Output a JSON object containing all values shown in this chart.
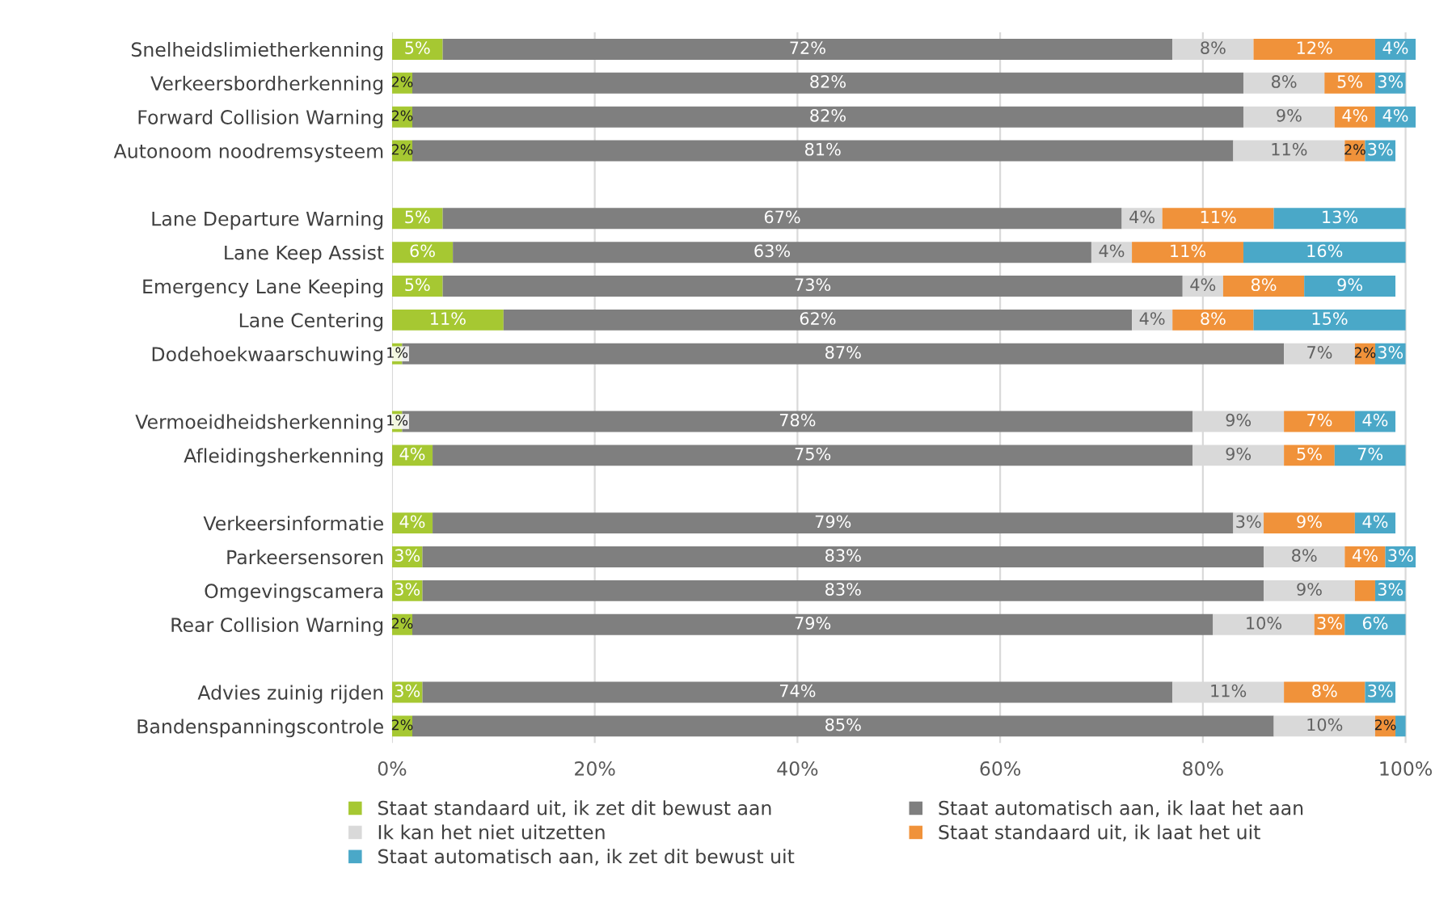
{
  "chart_data": {
    "type": "bar",
    "orientation": "horizontal",
    "stacked": true,
    "categories": [
      "Snelheidslimietherkenning",
      "Verkeersbordherkenning",
      "Forward Collision Warning",
      "Autonoom noodremsysteem",
      null,
      "Lane Departure Warning",
      "Lane Keep Assist",
      "Emergency Lane Keeping",
      "Lane Centering",
      "Dodehoekwaarschuwing",
      null,
      "Vermoeidheidsherkenning",
      "Afleidingsherkenning",
      null,
      "Verkeersinformatie",
      "Parkeersensoren",
      "Omgevingscamera",
      "Rear Collision Warning",
      null,
      "Advies zuinig rijden",
      "Bandenspanningscontrole"
    ],
    "series": [
      {
        "name": "Staat standaard uit, ik zet dit bewust aan",
        "color": "#a6c832",
        "values": [
          5,
          2,
          2,
          2,
          null,
          5,
          6,
          5,
          11,
          1,
          null,
          1,
          4,
          null,
          4,
          3,
          3,
          2,
          null,
          3,
          2
        ],
        "value_labels": [
          "5%",
          "2%",
          "2%",
          "2%",
          null,
          "5%",
          "6%",
          "5%",
          "11%",
          "1%",
          null,
          "1%",
          "4%",
          null,
          "4%",
          "3%",
          "3%",
          "2%",
          null,
          "3%",
          "2%"
        ]
      },
      {
        "name": "Staat automatisch aan, ik laat het aan",
        "color": "#7f7f7f",
        "values": [
          72,
          82,
          82,
          81,
          null,
          67,
          63,
          73,
          62,
          87,
          null,
          78,
          75,
          null,
          79,
          83,
          83,
          79,
          null,
          74,
          85
        ],
        "value_labels": [
          "72%",
          "82%",
          "82%",
          "81%",
          null,
          "67%",
          "63%",
          "73%",
          "62%",
          "87%",
          null,
          "78%",
          "75%",
          null,
          "79%",
          "83%",
          "83%",
          "79%",
          null,
          "74%",
          "85%"
        ]
      },
      {
        "name": "Ik kan het niet uitzetten",
        "color": "#d9d9d9",
        "values": [
          8,
          8,
          9,
          11,
          null,
          4,
          4,
          4,
          4,
          7,
          null,
          9,
          9,
          null,
          3,
          8,
          9,
          10,
          null,
          11,
          10
        ],
        "value_labels": [
          "8%",
          "8%",
          "9%",
          "11%",
          null,
          "4%",
          "4%",
          "4%",
          "4%",
          "7%",
          null,
          "9%",
          "9%",
          null,
          "3%",
          "8%",
          "9%",
          "10%",
          null,
          "11%",
          "10%"
        ]
      },
      {
        "name": "Staat standaard uit, ik laat het uit",
        "color": "#f0923a",
        "values": [
          12,
          5,
          4,
          2,
          null,
          11,
          11,
          8,
          8,
          2,
          null,
          7,
          5,
          null,
          9,
          4,
          2,
          3,
          null,
          8,
          2
        ],
        "value_labels": [
          "12%",
          "5%",
          "4%",
          "2%",
          null,
          "11%",
          "11%",
          "8%",
          "8%",
          "2%",
          null,
          "7%",
          "5%",
          null,
          "9%",
          "4%",
          null,
          "3%",
          null,
          "8%",
          "2%"
        ]
      },
      {
        "name": "Staat automatisch aan, ik zet dit bewust uit",
        "color": "#4aa8c8",
        "values": [
          4,
          3,
          4,
          3,
          null,
          13,
          16,
          9,
          15,
          3,
          null,
          4,
          7,
          null,
          4,
          3,
          3,
          6,
          null,
          3,
          1
        ],
        "value_labels": [
          "4%",
          "3%",
          "4%",
          "3%",
          null,
          "13%",
          "16%",
          "9%",
          "15%",
          "3%",
          null,
          "4%",
          "7%",
          null,
          "4%",
          "3%",
          "3%",
          "6%",
          null,
          "3%",
          null
        ]
      }
    ],
    "xlim": [
      0,
      101
    ],
    "xticks": [
      {
        "value": 0,
        "label": "0%"
      },
      {
        "value": 20,
        "label": "20%"
      },
      {
        "value": 40,
        "label": "40%"
      },
      {
        "value": 60,
        "label": "60%"
      },
      {
        "value": 80,
        "label": "80%"
      },
      {
        "value": 100,
        "label": "100%"
      }
    ],
    "grid": "x",
    "legend": "bottom"
  }
}
